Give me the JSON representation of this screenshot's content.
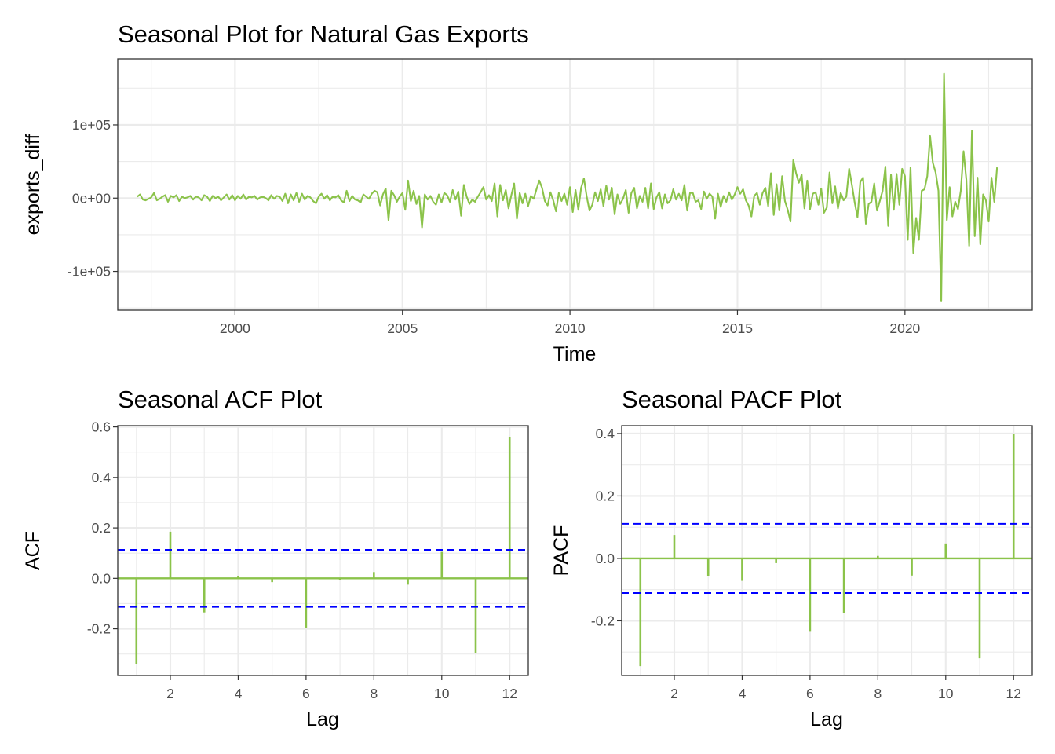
{
  "series_color": "#8bc34a",
  "ci_color": "#0000ff",
  "chart_data": [
    {
      "type": "line",
      "title": "Seasonal Plot for Natural Gas Exports",
      "xlabel": "Time",
      "ylabel": "exports_diff",
      "xlim": [
        1996.5,
        2023.8
      ],
      "ylim": [
        -153000,
        190000
      ],
      "x_ticks": [
        2000,
        2005,
        2010,
        2015,
        2020
      ],
      "x_tick_labels": [
        "2000",
        "2005",
        "2010",
        "2015",
        "2020"
      ],
      "y_ticks": [
        -100000,
        0,
        100000
      ],
      "y_tick_labels": [
        "-1e+05",
        "0e+00",
        "1e+05"
      ],
      "x_start": 1997.083333,
      "x_step": 0.0833333,
      "values": [
        2000,
        5000,
        -2000,
        -3000,
        -1000,
        1000,
        7000,
        -3000,
        -1000,
        2000,
        4000,
        -5000,
        3000,
        1000,
        4000,
        -4000,
        2000,
        0,
        1000,
        3000,
        -2000,
        2000,
        1000,
        -3000,
        4000,
        2000,
        -4000,
        3000,
        0,
        2000,
        -3000,
        1000,
        5000,
        -2000,
        4000,
        -3000,
        3000,
        -1000,
        5000,
        -2000,
        2000,
        1000,
        3000,
        -2000,
        1000,
        2000,
        0,
        -3000,
        4000,
        -1000,
        3000,
        2000,
        -4000,
        6000,
        -7000,
        5000,
        -3000,
        7000,
        -5000,
        6000,
        -2000,
        3000,
        1000,
        -4000,
        -7000,
        2000,
        6000,
        -1000,
        4000,
        -3000,
        2000,
        1000,
        4000,
        -3000,
        -6000,
        10000,
        -4000,
        3000,
        -2000,
        -3000,
        -6000,
        5000,
        2000,
        -1000,
        6000,
        10000,
        8000,
        -10000,
        5000,
        13000,
        -30000,
        10000,
        4000,
        -5000,
        2000,
        7000,
        -16000,
        24000,
        -4000,
        10000,
        -8000,
        3000,
        -40000,
        5000,
        -2000,
        3000,
        -5000,
        -9000,
        5000,
        -6000,
        7000,
        4000,
        -5000,
        11000,
        -2000,
        9000,
        -24000,
        18000,
        2000,
        -8000,
        -2000,
        -5000,
        2000,
        8000,
        15000,
        -2000,
        4000,
        -4000,
        20000,
        -25000,
        18000,
        -3000,
        11000,
        -14000,
        4000,
        20000,
        -28000,
        7000,
        -7000,
        6000,
        -11000,
        3000,
        -1000,
        12000,
        24000,
        14000,
        -4000,
        -10000,
        8000,
        -3000,
        -18000,
        7000,
        -4000,
        6000,
        -9000,
        15000,
        -19000,
        11000,
        -16000,
        14000,
        27000,
        2000,
        -17000,
        -9000,
        8000,
        -4000,
        12000,
        -11000,
        17000,
        -2000,
        14000,
        -22000,
        5000,
        -8000,
        -1000,
        11000,
        -20000,
        7000,
        14000,
        -14000,
        3000,
        -5000,
        14000,
        -14000,
        20000,
        -15000,
        1000,
        8000,
        -14000,
        5000,
        -7000,
        -3000,
        12000,
        -2000,
        6000,
        -3000,
        18000,
        -17000,
        7000,
        7000,
        -5000,
        -3000,
        -15000,
        9000,
        -1000,
        6000,
        2000,
        -28000,
        6000,
        -12000,
        3000,
        -5000,
        8000,
        -2000,
        5000,
        15000,
        6000,
        12000,
        -3000,
        -10000,
        -25000,
        3000,
        7000,
        -9000,
        7000,
        14000,
        -11000,
        34000,
        -23000,
        19000,
        -17000,
        30000,
        -4000,
        -16000,
        -32000,
        52000,
        34000,
        21000,
        32000,
        -14000,
        24000,
        -15000,
        6000,
        8000,
        -9000,
        13000,
        -20000,
        -13000,
        35000,
        -7000,
        16000,
        -14000,
        7000,
        -3000,
        2000,
        40000,
        18000,
        -6000,
        -26000,
        22000,
        28000,
        -35000,
        -8000,
        -5000,
        20000,
        -17000,
        -4000,
        10000,
        43000,
        -38000,
        32000,
        -16000,
        33000,
        -9000,
        40000,
        30000,
        -57000,
        42000,
        -75000,
        -27000,
        -57000,
        10000,
        12000,
        30000,
        85000,
        48000,
        35000,
        10000,
        -140000,
        170000,
        -30000,
        15000,
        -25000,
        -5000,
        -15000,
        10000,
        64000,
        25000,
        -65000,
        92000,
        -52000,
        28000,
        -63000,
        5000,
        -3000,
        -32000,
        28000,
        -5000,
        42000
      ]
    },
    {
      "type": "bar",
      "title": "Seasonal ACF Plot",
      "xlabel": "Lag",
      "ylabel": "ACF",
      "xlim": [
        0.45,
        12.55
      ],
      "ylim": [
        -0.385,
        0.605
      ],
      "x_ticks": [
        2,
        4,
        6,
        8,
        10,
        12
      ],
      "x_tick_labels": [
        "2",
        "4",
        "6",
        "8",
        "10",
        "12"
      ],
      "y_ticks": [
        -0.2,
        0,
        0.2,
        0.4,
        0.6
      ],
      "y_tick_labels": [
        "-0.2",
        "0.0",
        "0.2",
        "0.4",
        "0.6"
      ],
      "categories": [
        1,
        2,
        3,
        4,
        5,
        6,
        7,
        8,
        9,
        10,
        11,
        12
      ],
      "values": [
        -0.34,
        0.185,
        -0.135,
        0.008,
        -0.015,
        -0.195,
        -0.008,
        0.025,
        -0.025,
        0.105,
        -0.295,
        0.56
      ],
      "ci": 0.113
    },
    {
      "type": "bar",
      "title": "Seasonal PACF Plot",
      "xlabel": "Lag",
      "ylabel": "PACF",
      "xlim": [
        0.45,
        12.55
      ],
      "ylim": [
        -0.375,
        0.425
      ],
      "x_ticks": [
        2,
        4,
        6,
        8,
        10,
        12
      ],
      "x_tick_labels": [
        "2",
        "4",
        "6",
        "8",
        "10",
        "12"
      ],
      "y_ticks": [
        -0.2,
        0,
        0.2,
        0.4
      ],
      "y_tick_labels": [
        "-0.2",
        "0.0",
        "0.2",
        "0.4"
      ],
      "categories": [
        1,
        2,
        3,
        4,
        5,
        6,
        7,
        8,
        9,
        10,
        11,
        12
      ],
      "values": [
        -0.345,
        0.075,
        -0.057,
        -0.072,
        -0.015,
        -0.235,
        -0.175,
        0.008,
        -0.055,
        0.048,
        -0.32,
        0.4
      ],
      "ci": 0.111
    }
  ]
}
